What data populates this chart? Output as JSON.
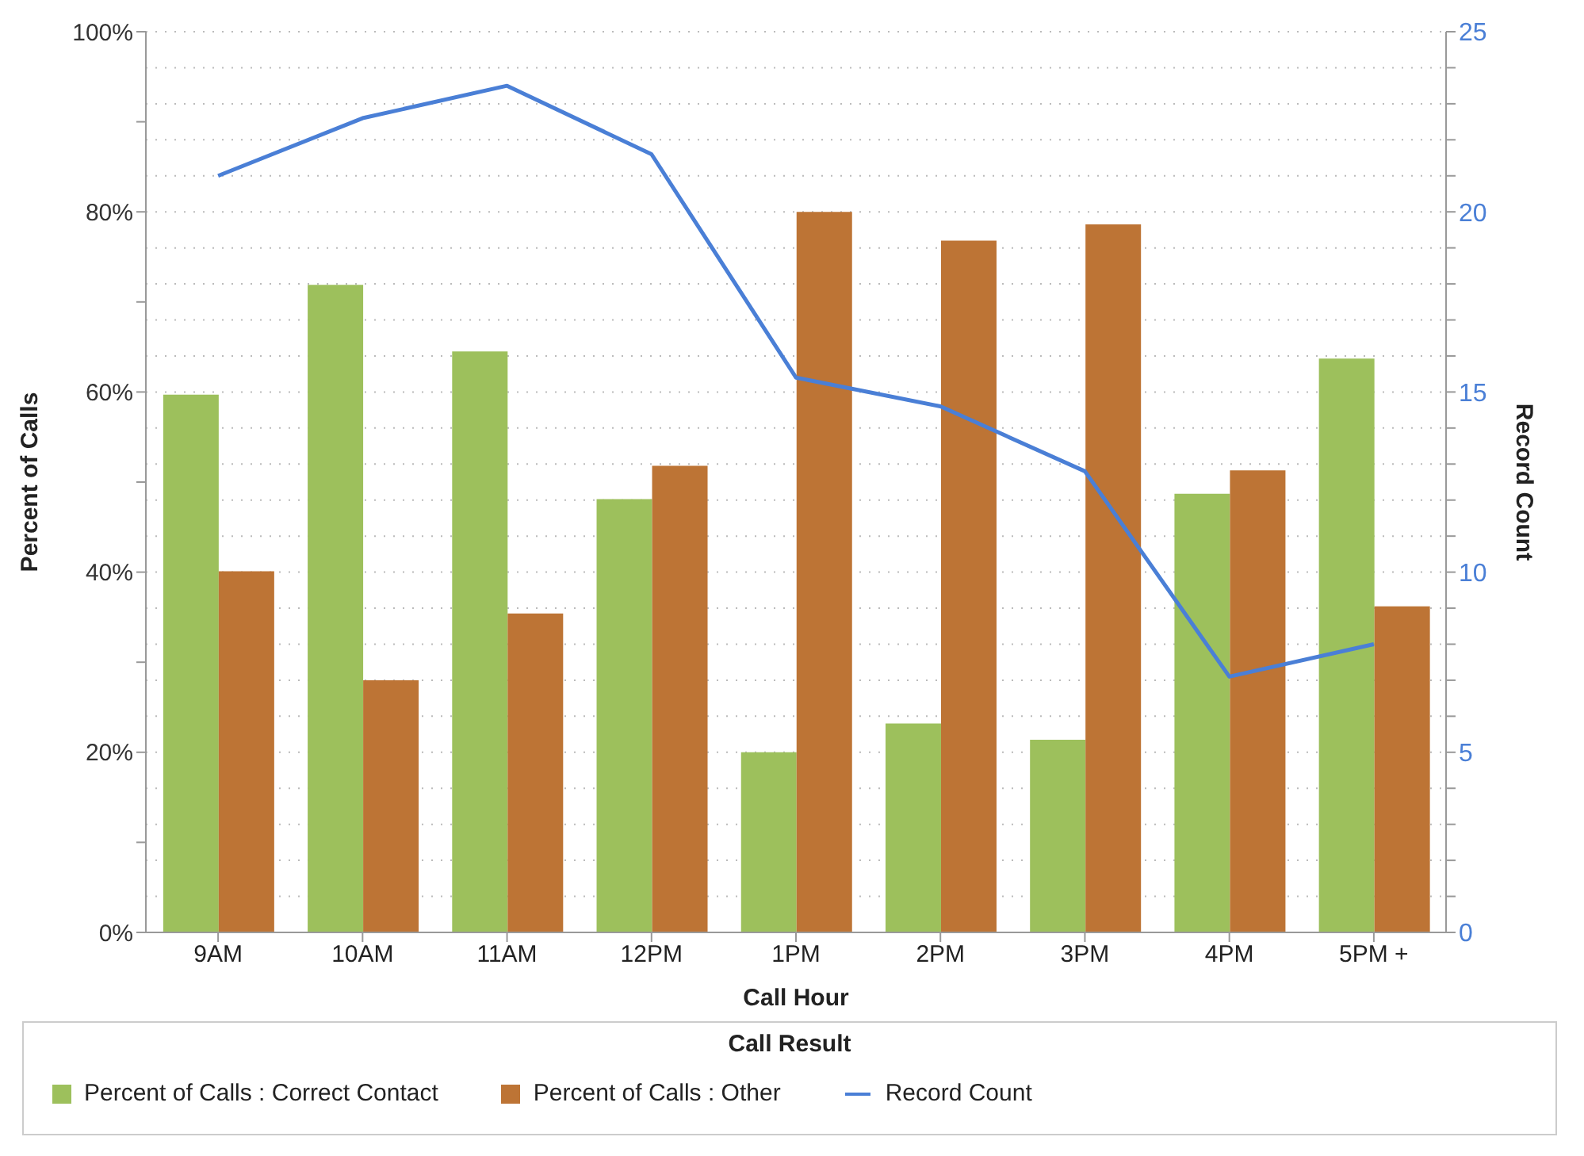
{
  "chart_data": {
    "type": "bar",
    "xlabel": "Call Hour",
    "ylabel": "Percent of Calls",
    "y2label": "Record Count",
    "legend_title": "Call Result",
    "categories": [
      "9AM",
      "10AM",
      "11AM",
      "12PM",
      "1PM",
      "2PM",
      "3PM",
      "4PM",
      "5PM +"
    ],
    "series": [
      {
        "name": "Percent of Calls : Correct Contact",
        "color": "#9dc05c",
        "values": [
          59.7,
          71.9,
          64.5,
          48.1,
          20.0,
          23.2,
          21.4,
          48.7,
          63.7
        ]
      },
      {
        "name": "Percent of Calls : Other",
        "color": "#bd7435",
        "values": [
          40.1,
          28.0,
          35.4,
          51.8,
          80.0,
          76.8,
          78.6,
          51.3,
          36.2
        ]
      },
      {
        "name": "Record Count",
        "type": "line",
        "axis": "y2",
        "color": "#4a7fd6",
        "marker": "none",
        "values": [
          21.0,
          22.6,
          23.5,
          21.6,
          15.4,
          14.6,
          12.8,
          7.1,
          8.0
        ]
      }
    ],
    "ylim": [
      0,
      100
    ],
    "yticks": [
      {
        "value": 0,
        "label": "0%"
      },
      {
        "value": 10,
        "label": null
      },
      {
        "value": 20,
        "label": "20%"
      },
      {
        "value": 30,
        "label": null
      },
      {
        "value": 40,
        "label": "40%"
      },
      {
        "value": 50,
        "label": null
      },
      {
        "value": 60,
        "label": "60%"
      },
      {
        "value": 70,
        "label": null
      },
      {
        "value": 80,
        "label": "80%"
      },
      {
        "value": 90,
        "label": null
      },
      {
        "value": 100,
        "label": "100%"
      }
    ],
    "y2lim": [
      0,
      25
    ],
    "y2ticks": [
      0,
      {
        "value": 1,
        "label": null
      },
      {
        "value": 2,
        "label": null
      },
      {
        "value": 3,
        "label": null
      },
      {
        "value": 4,
        "label": null
      },
      5,
      {
        "value": 6,
        "label": null
      },
      {
        "value": 7,
        "label": null
      },
      {
        "value": 8,
        "label": null
      },
      {
        "value": 9,
        "label": null
      },
      10,
      {
        "value": 11,
        "label": null
      },
      {
        "value": 12,
        "label": null
      },
      {
        "value": 13,
        "label": null
      },
      {
        "value": 14,
        "label": null
      },
      15,
      {
        "value": 16,
        "label": null
      },
      {
        "value": 17,
        "label": null
      },
      {
        "value": 18,
        "label": null
      },
      {
        "value": 19,
        "label": null
      },
      20,
      {
        "value": 21,
        "label": null
      },
      {
        "value": 22,
        "label": null
      },
      {
        "value": 23,
        "label": null
      },
      {
        "value": 24,
        "label": null
      },
      25
    ],
    "grid": "y2",
    "legend": "bottom"
  }
}
